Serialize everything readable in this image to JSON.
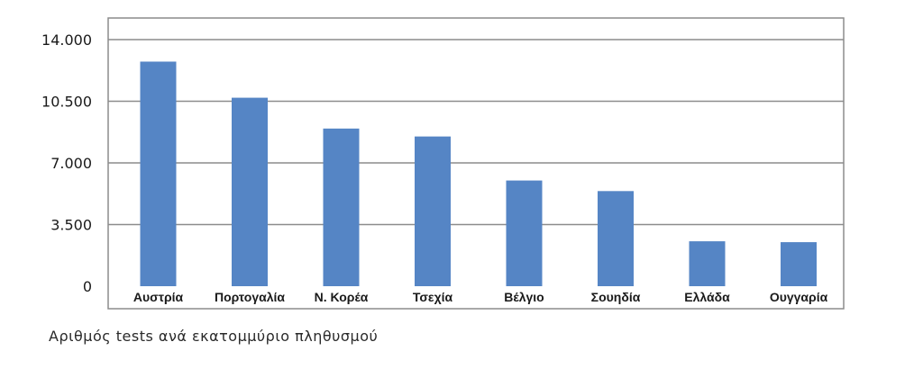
{
  "caption": "Αριθμός tests ανά εκατομμύριο πληθυσμού",
  "colors": {
    "bar": "#5585c5",
    "grid": "#8c8c8c",
    "frame": "#8c8c8c",
    "text": "#1a1a1a"
  },
  "chart_data": {
    "type": "bar",
    "title": "",
    "xlabel": "",
    "ylabel": "",
    "categories": [
      "Αυστρία",
      "Πορτογαλία",
      "Ν. Κορέα",
      "Τσεχία",
      "Βέλγιο",
      "Σουηδία",
      "Ελλάδα",
      "Ουγγαρία"
    ],
    "values": [
      12750,
      10700,
      8950,
      8500,
      6000,
      5400,
      2550,
      2500
    ],
    "ylim": [
      0,
      14000
    ],
    "yticks": [
      0,
      3500,
      7000,
      10500,
      14000
    ],
    "ytick_labels": [
      "0",
      "3.500",
      "7.000",
      "10.500",
      "14.000"
    ],
    "grid": true,
    "legend": "none"
  }
}
